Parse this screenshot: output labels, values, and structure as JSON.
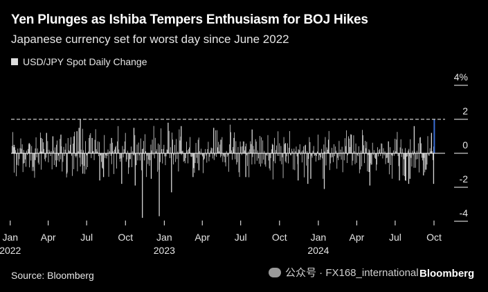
{
  "header": {
    "title": "Yen Plunges as Ishiba Tempers Enthusiasm for BOJ Hikes",
    "subtitle": "Japanese currency set for worst day since June 2022"
  },
  "footer": {
    "source": "Source: Bloomberg",
    "watermark": "公众号 · FX168_international",
    "brand": "Bloomberg"
  },
  "colors": {
    "background": "#000000",
    "bars": "#d9d9d9",
    "highlight": "#3b6fd6",
    "reference_line": "#ffffff"
  },
  "chart_data": {
    "type": "bar",
    "legend": [
      "USD/JPY Spot Daily Change"
    ],
    "legend_position": "top-left",
    "x_range": [
      "2022-01-03",
      "2024-10-01"
    ],
    "ylim": [
      -4,
      4
    ],
    "y_ticks": [
      4,
      2,
      0,
      -2,
      -4
    ],
    "y_tick_labels": [
      "4%",
      "2",
      "0",
      "-2",
      "-4"
    ],
    "y_axis_side": "right",
    "grid": false,
    "x_ticks": [
      {
        "date": "2022-01-01",
        "label": "Jan",
        "year": "2022"
      },
      {
        "date": "2022-04-01",
        "label": "Apr",
        "year": ""
      },
      {
        "date": "2022-07-01",
        "label": "Jul",
        "year": ""
      },
      {
        "date": "2022-10-01",
        "label": "Oct",
        "year": ""
      },
      {
        "date": "2023-01-01",
        "label": "Jan",
        "year": "2023"
      },
      {
        "date": "2023-04-01",
        "label": "Apr",
        "year": ""
      },
      {
        "date": "2023-07-01",
        "label": "Jul",
        "year": ""
      },
      {
        "date": "2023-10-01",
        "label": "Oct",
        "year": ""
      },
      {
        "date": "2024-01-01",
        "label": "Jan",
        "year": "2024"
      },
      {
        "date": "2024-04-01",
        "label": "Apr",
        "year": ""
      },
      {
        "date": "2024-07-01",
        "label": "Jul",
        "year": ""
      },
      {
        "date": "2024-10-01",
        "label": "Oct",
        "year": ""
      }
    ],
    "reference_line": {
      "y": 2.0,
      "style": "dashed"
    },
    "series": [
      {
        "name": "USD/JPY Spot Daily Change",
        "points": [
          [
            "2022-01-10",
            0.5
          ],
          [
            "2022-02-01",
            -0.6
          ],
          [
            "2022-02-15",
            0.6
          ],
          [
            "2022-03-01",
            -0.4
          ],
          [
            "2022-03-15",
            0.9
          ],
          [
            "2022-03-28",
            1.2
          ],
          [
            "2022-04-12",
            1.0
          ],
          [
            "2022-04-20",
            -0.8
          ],
          [
            "2022-05-01",
            1.1
          ],
          [
            "2022-05-15",
            -1.2
          ],
          [
            "2022-06-01",
            1.0
          ],
          [
            "2022-06-08",
            1.3
          ],
          [
            "2022-06-13",
            1.5
          ],
          [
            "2022-06-16",
            2.0
          ],
          [
            "2022-06-22",
            -1.2
          ],
          [
            "2022-07-14",
            0.9
          ],
          [
            "2022-08-01",
            -1.6
          ],
          [
            "2022-08-10",
            -1.4
          ],
          [
            "2022-08-29",
            0.9
          ],
          [
            "2022-09-22",
            -1.8
          ],
          [
            "2022-10-21",
            1.5
          ],
          [
            "2022-10-24",
            -1.9
          ],
          [
            "2022-11-10",
            -3.8
          ],
          [
            "2022-12-01",
            -1.5
          ],
          [
            "2022-12-20",
            -3.7
          ],
          [
            "2023-01-10",
            1.8
          ],
          [
            "2023-01-18",
            -2.3
          ],
          [
            "2023-02-10",
            1.6
          ],
          [
            "2023-03-10",
            -1.4
          ],
          [
            "2023-03-24",
            -1.0
          ],
          [
            "2023-04-28",
            1.5
          ],
          [
            "2023-05-15",
            0.8
          ],
          [
            "2023-06-15",
            0.9
          ],
          [
            "2023-07-13",
            -1.4
          ],
          [
            "2023-07-28",
            1.4
          ],
          [
            "2023-09-15",
            0.5
          ],
          [
            "2023-10-15",
            0.6
          ],
          [
            "2023-11-14",
            -1.6
          ],
          [
            "2023-12-07",
            -1.8
          ],
          [
            "2023-12-14",
            -1.5
          ],
          [
            "2024-01-15",
            -2.1
          ],
          [
            "2024-01-25",
            0.8
          ],
          [
            "2024-03-19",
            1.1
          ],
          [
            "2024-04-30",
            -1.1
          ],
          [
            "2024-05-02",
            -1.9
          ],
          [
            "2024-06-15",
            0.7
          ],
          [
            "2024-07-11",
            -1.6
          ],
          [
            "2024-07-25",
            -1.6
          ],
          [
            "2024-08-02",
            -1.8
          ],
          [
            "2024-08-05",
            -1.5
          ],
          [
            "2024-08-15",
            1.6
          ],
          [
            "2024-09-06",
            -1.3
          ],
          [
            "2024-09-25",
            1.2
          ],
          [
            "2024-09-30",
            -1.8
          ],
          [
            "2024-10-01",
            2.0
          ]
        ]
      }
    ]
  }
}
